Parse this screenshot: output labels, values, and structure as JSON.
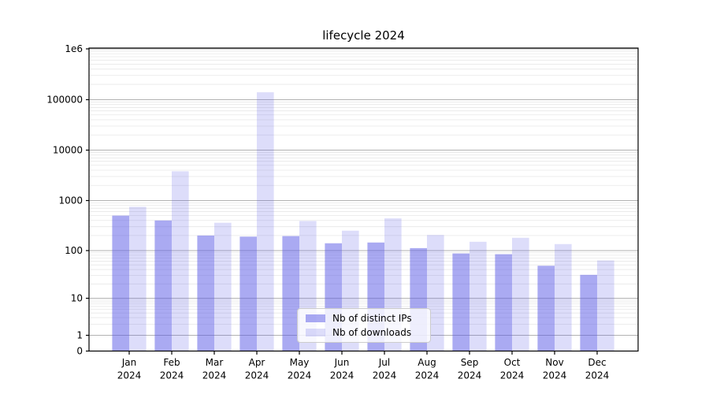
{
  "window": {
    "background": "#ffffff"
  },
  "chart_data": {
    "type": "bar",
    "title": "lifecycle 2024",
    "year_label": "2024",
    "categories": [
      "Jan",
      "Feb",
      "Mar",
      "Apr",
      "May",
      "Jun",
      "Jul",
      "Aug",
      "Sep",
      "Oct",
      "Nov",
      "Dec"
    ],
    "series": [
      {
        "name": "Nb of distinct IPs",
        "color": "rgba(85,85,230,0.5)",
        "values": [
          500,
          400,
          200,
          190,
          195,
          140,
          145,
          112,
          87,
          84,
          48,
          31
        ]
      },
      {
        "name": "Nb of downloads",
        "color": "rgba(85,85,230,0.2)",
        "values": [
          750,
          3800,
          360,
          140000,
          390,
          250,
          440,
          205,
          150,
          180,
          135,
          62
        ]
      }
    ],
    "xlabel": "",
    "ylabel": "",
    "yscale": "symlog",
    "ylim": [
      0,
      1000000
    ],
    "yticks": [
      0,
      1,
      10,
      100,
      1000,
      10000,
      100000,
      1000000
    ],
    "ytick_labels": [
      "0",
      "1",
      "10",
      "100",
      "1000",
      "10000",
      "100000",
      "1e6"
    ],
    "grid": {
      "major": true,
      "minor": true,
      "major_color": "#b2b2b2",
      "minor_color": "#e7e7e7"
    },
    "legend_position": "lower center",
    "axis_color": "#000000"
  }
}
